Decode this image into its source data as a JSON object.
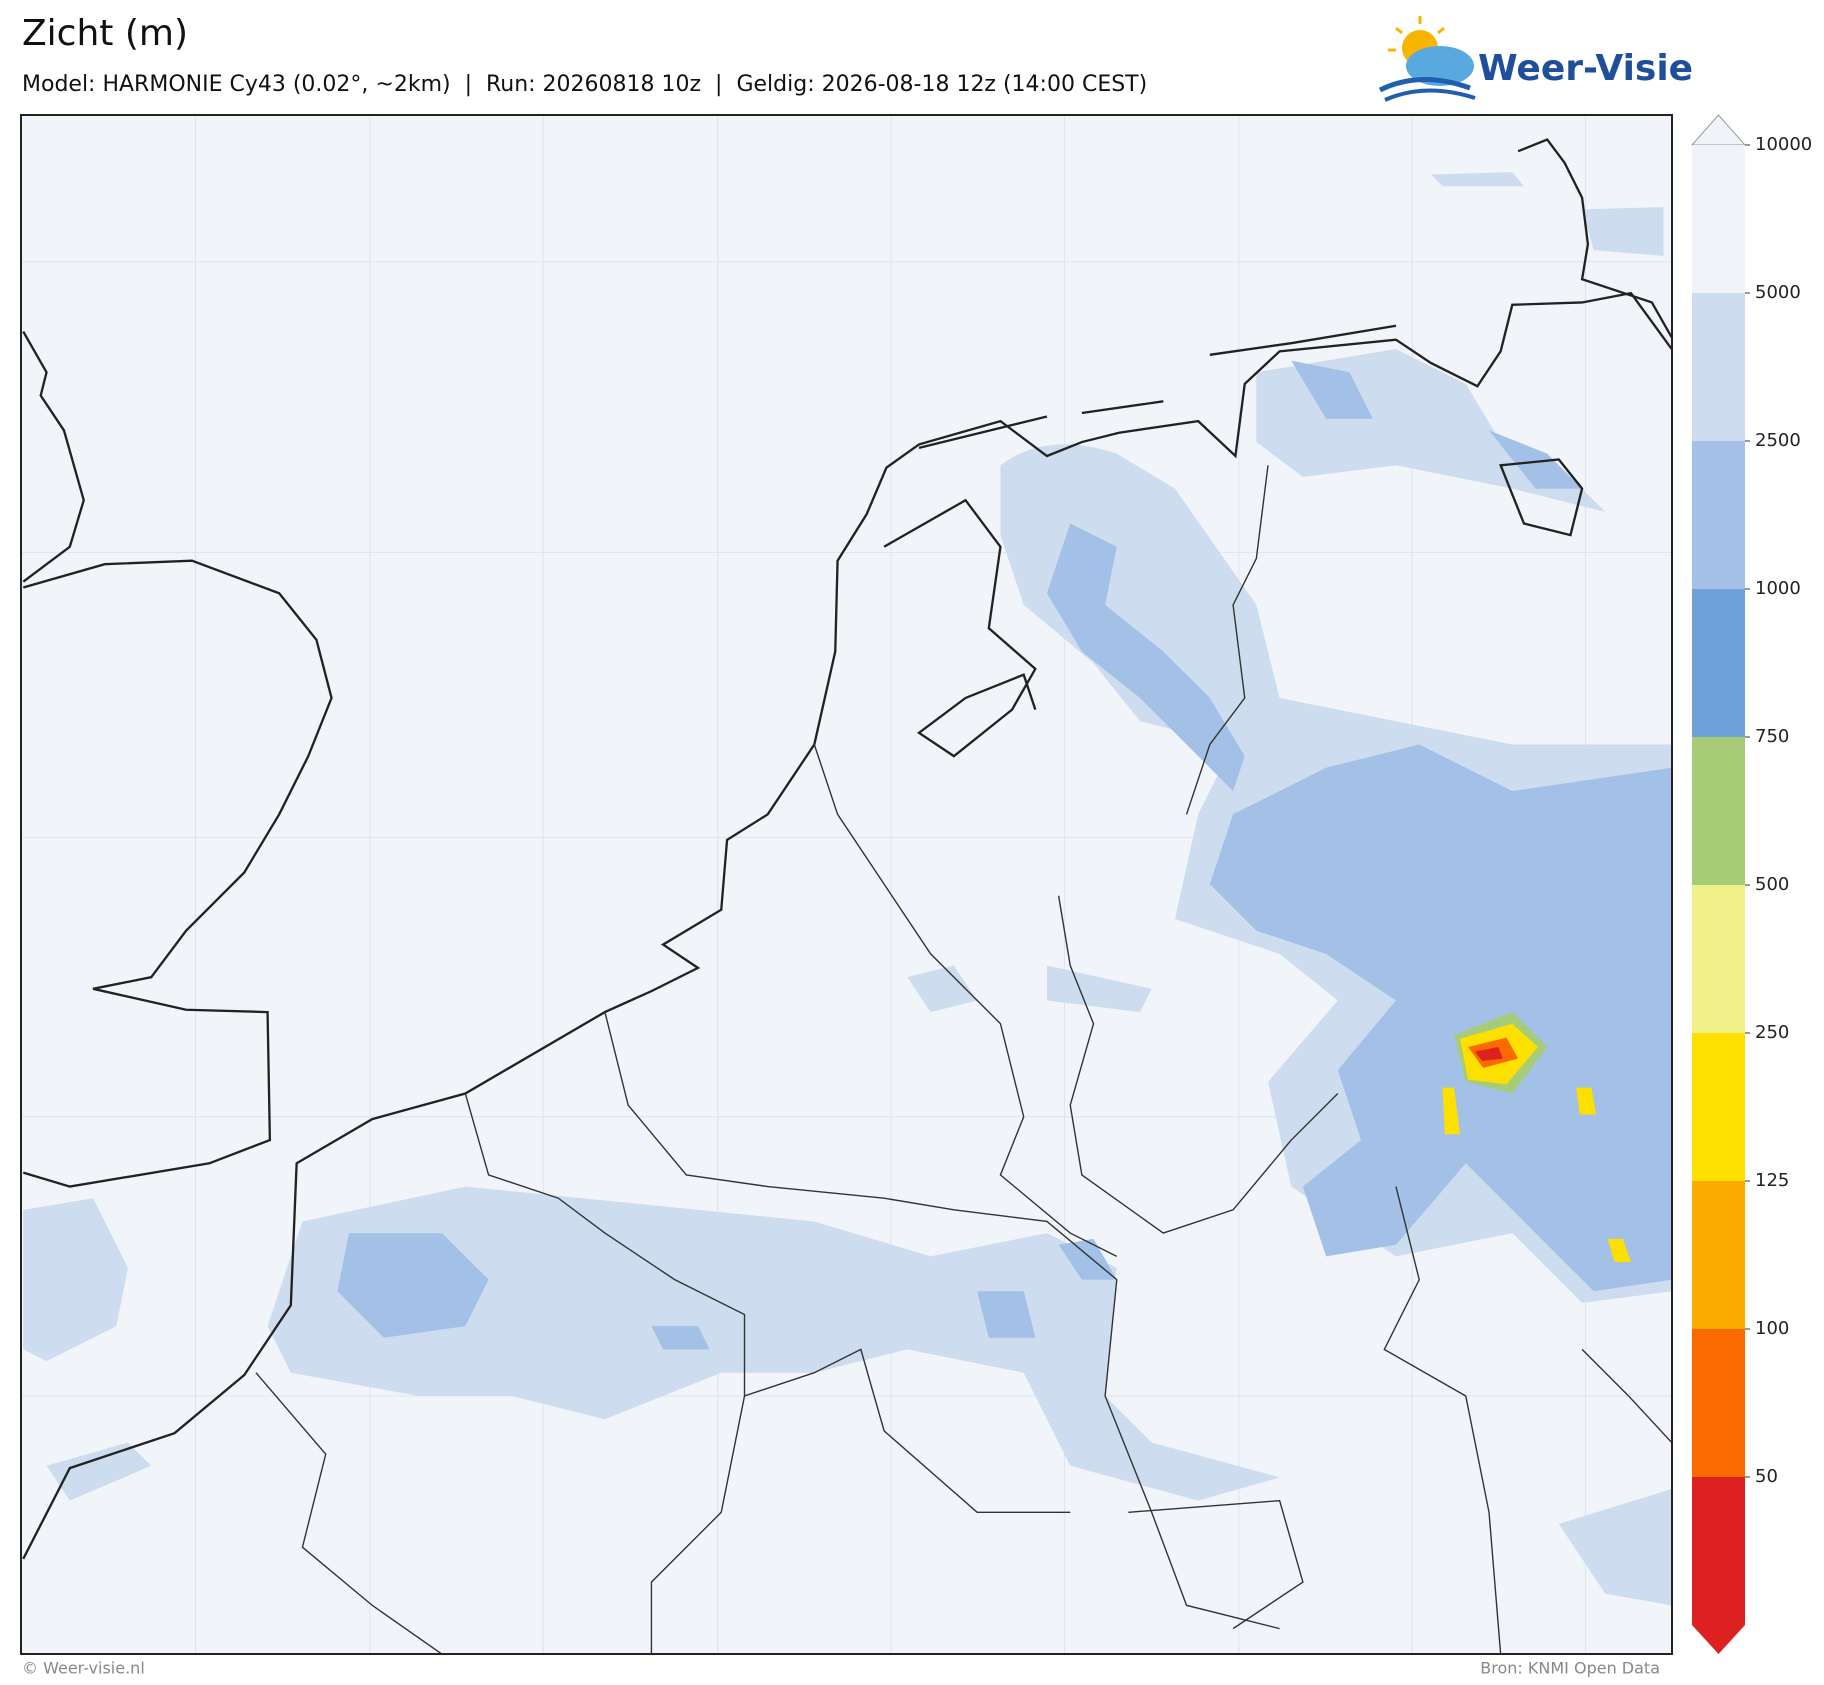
{
  "header": {
    "title": "Zicht (m)",
    "subtitle": "Model: HARMONIE Cy43 (0.02°, ~2km)  |  Run: 20260818 10z  |  Geldig: 2026-08-18 12z (14:00 CEST)",
    "logo": "Weer-Visie"
  },
  "colorbar": {
    "ticks": [
      10000,
      5000,
      2500,
      1000,
      750,
      500,
      250,
      125,
      100,
      50
    ],
    "colors": [
      "#f0f4f9",
      "#cddcef",
      "#a3c0e6",
      "#6fa0d8",
      "#a6cc78",
      "#f2f08a",
      "#fde000",
      "#fbaa00",
      "#fb6a00",
      "#dd2020"
    ]
  },
  "footer": {
    "left": "© Weer-visie.nl",
    "right": "Bron: KNMI Open Data"
  }
}
